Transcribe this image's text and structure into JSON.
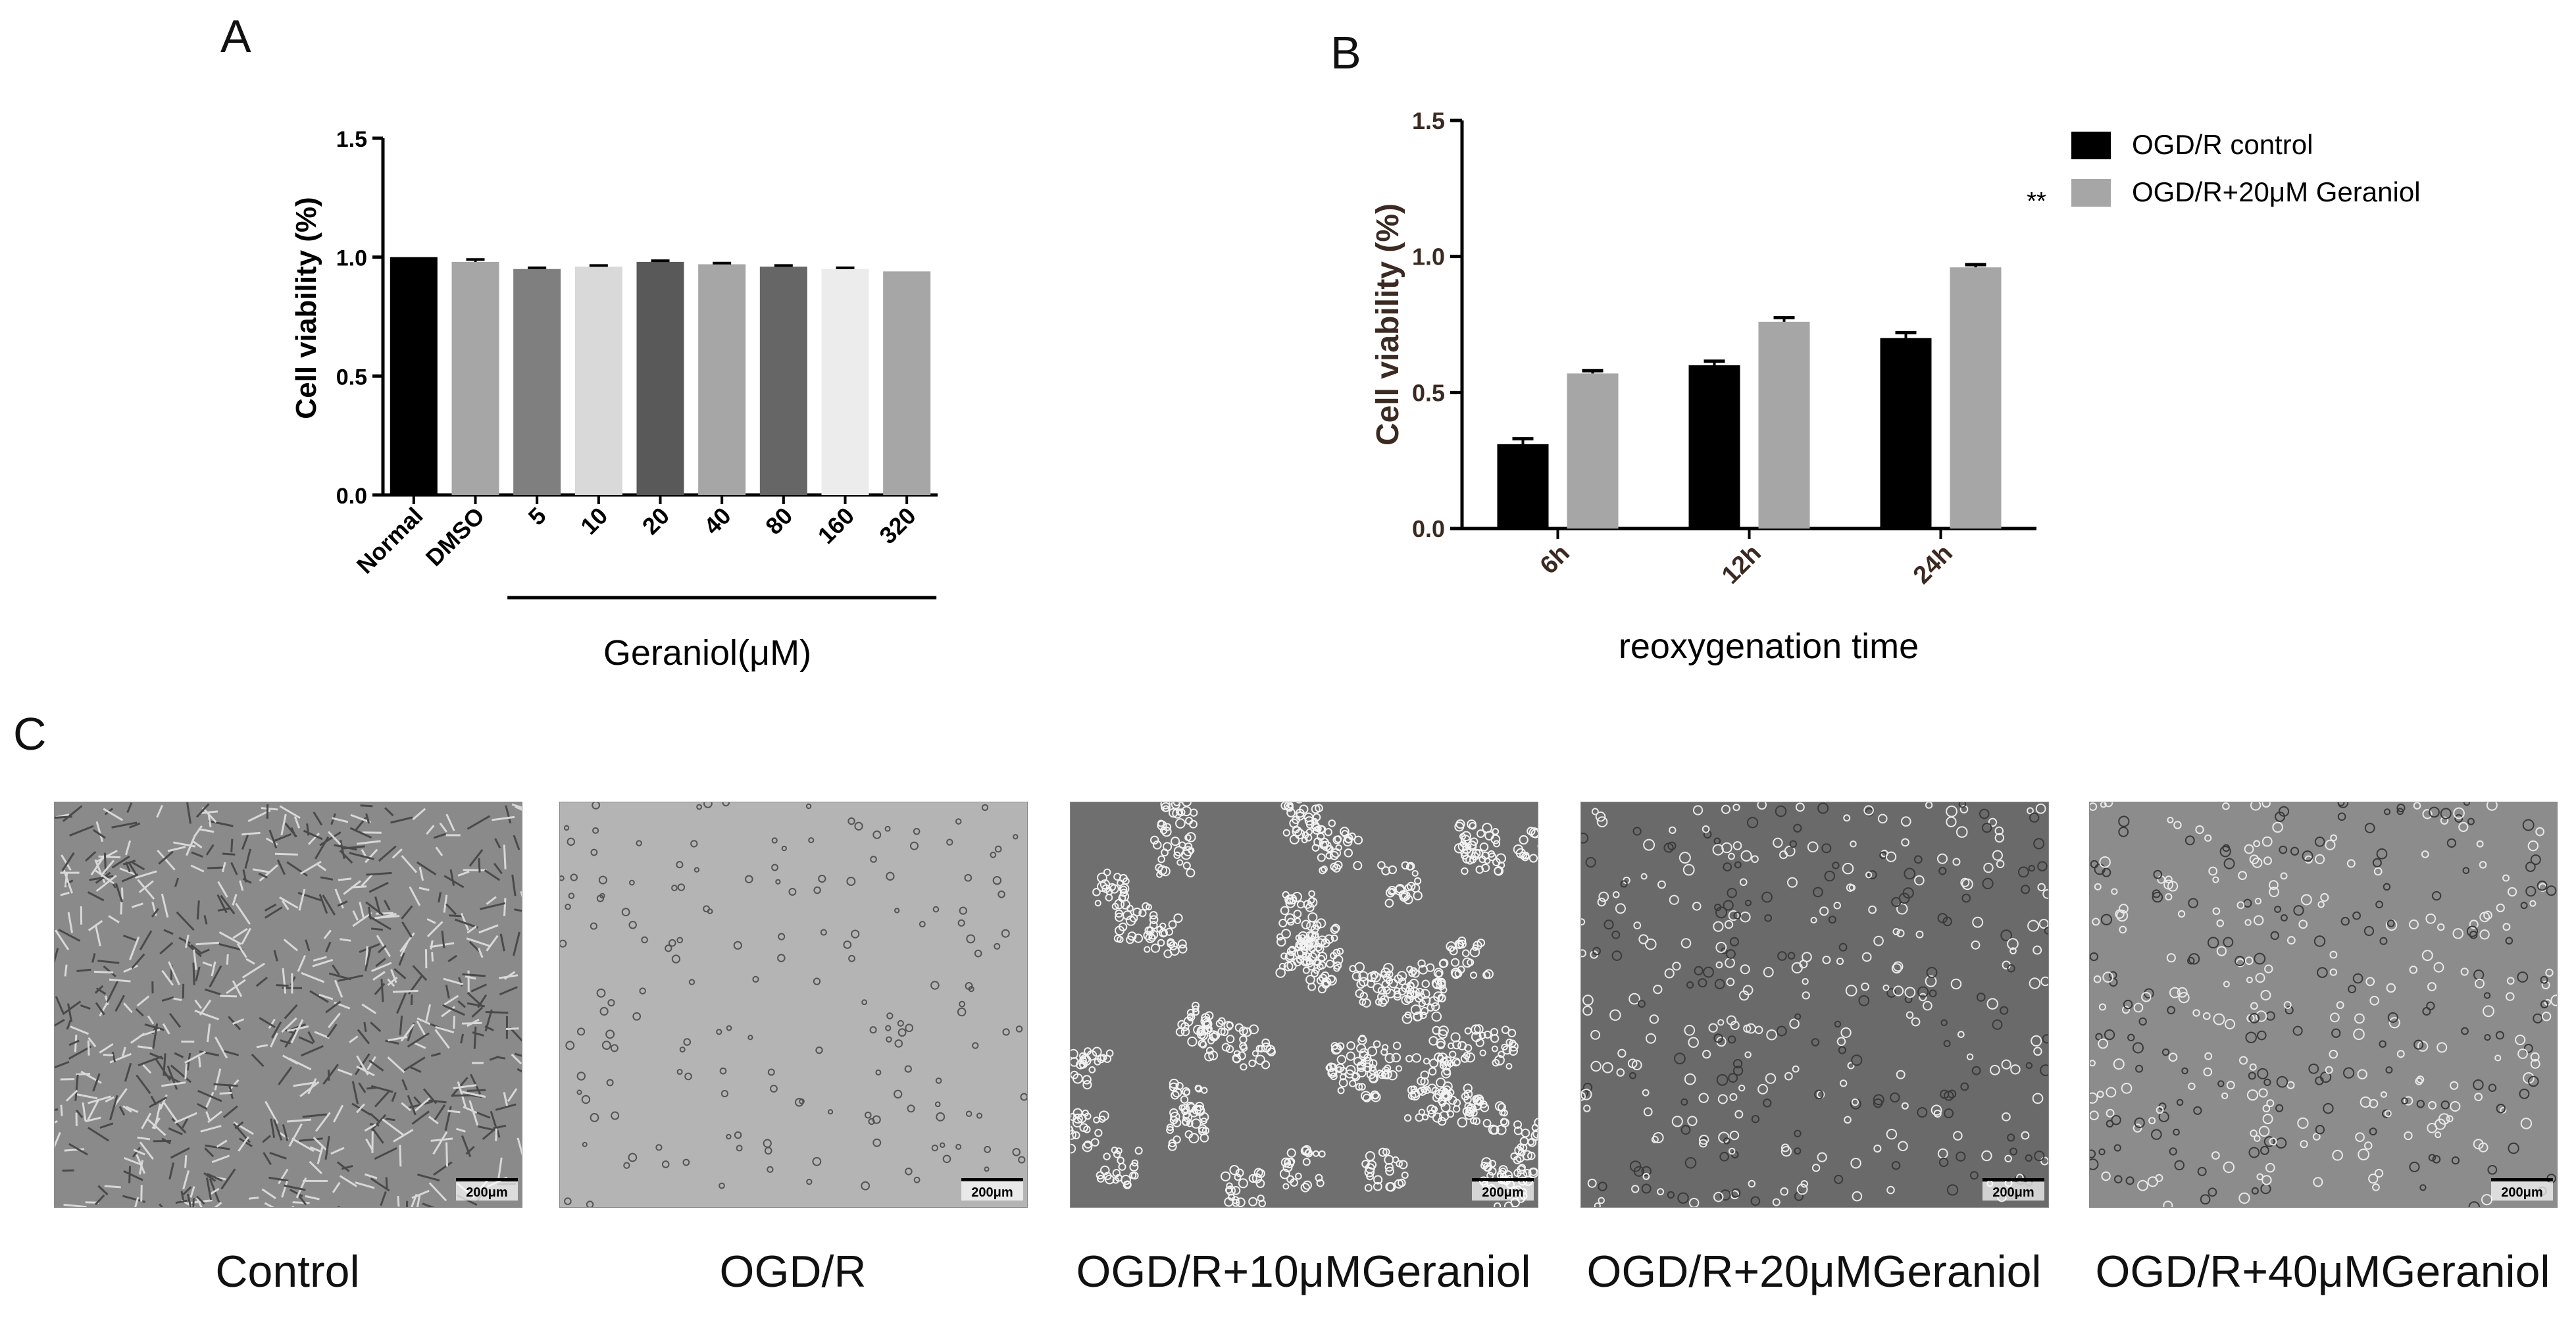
{
  "panels": {
    "a_letter": "A",
    "b_letter": "B",
    "c_letter": "C"
  },
  "chart_data": [
    {
      "type": "bar",
      "ylabel": "Cell viability (%)",
      "xlabel": "",
      "group_label": "Geraniol(μM)",
      "ylim": [
        0,
        1.5
      ],
      "yticks": [
        "0.0",
        "0.5",
        "1.0",
        "1.5"
      ],
      "ytick_values": [
        0,
        0.5,
        1.0,
        1.5
      ],
      "categories": [
        "Normal",
        "DMSO",
        "5",
        "10",
        "20",
        "40",
        "80",
        "160",
        "320"
      ],
      "values": [
        1.0,
        0.98,
        0.95,
        0.96,
        0.98,
        0.97,
        0.96,
        0.95,
        0.94
      ],
      "errors": [
        0.0,
        0.01,
        0.005,
        0.005,
        0.005,
        0.005,
        0.005,
        0.005,
        0.0
      ],
      "colors": [
        "#000000",
        "#a6a6a6",
        "#7f7f7f",
        "#d9d9d9",
        "#595959",
        "#a6a6a6",
        "#666666",
        "#ececec",
        "#a6a6a6"
      ]
    },
    {
      "type": "bar",
      "ylabel": "Cell viability (%)",
      "xlabel": "reoxygenation time",
      "ylim": [
        0,
        1.5
      ],
      "yticks": [
        "0.0",
        "0.5",
        "1.0",
        "1.5"
      ],
      "ytick_values": [
        0,
        0.5,
        1.0,
        1.5
      ],
      "categories": [
        "6h",
        "12h",
        "24h"
      ],
      "series": [
        {
          "name": "OGD/R control",
          "values": [
            0.31,
            0.6,
            0.7
          ],
          "errors": [
            0.02,
            0.015,
            0.02
          ],
          "color": "#000000"
        },
        {
          "name": "OGD/R+20μM Geraniol",
          "values": [
            0.57,
            0.76,
            0.96
          ],
          "errors": [
            0.01,
            0.015,
            0.01
          ],
          "color": "#a6a6a6"
        }
      ],
      "legend_placement": "top-right",
      "annotation": "**"
    }
  ],
  "micrographs": [
    {
      "label": "Control",
      "scalebar": "200μm",
      "bg": "#8a8a8a",
      "pattern": "dense"
    },
    {
      "label": "OGD/R",
      "scalebar": "200μm",
      "bg": "#b4b4b4",
      "pattern": "sparse"
    },
    {
      "label": "OGD/R+10μMGeraniol",
      "scalebar": "200μm",
      "bg": "#6f6f6f",
      "pattern": "clusters"
    },
    {
      "label": "OGD/R+20μMGeraniol",
      "scalebar": "200μm",
      "bg": "#6a6a6a",
      "pattern": "scatter"
    },
    {
      "label": "OGD/R+40μMGeraniol",
      "scalebar": "200μm",
      "bg": "#8c8c8c",
      "pattern": "scatter"
    }
  ]
}
